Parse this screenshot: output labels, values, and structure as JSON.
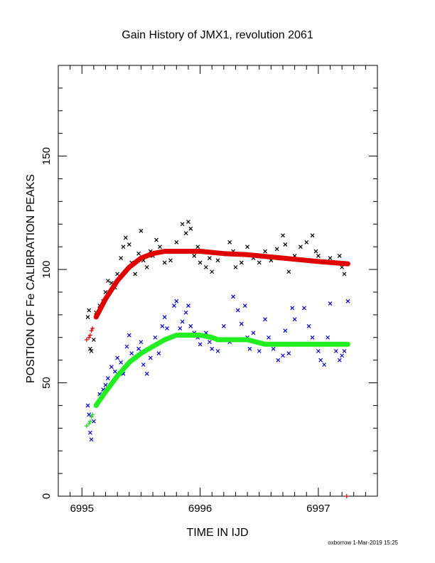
{
  "chart_data": {
    "type": "scatter",
    "title": "Gain History of JMX1, revolution 2061",
    "xlabel": "TIME IN IJD",
    "ylabel": "POSITION OF Fe CALIBRATION PEAKS",
    "xlim": [
      6994.8,
      6997.5
    ],
    "ylim": [
      0,
      190
    ],
    "x_ticks": [
      "6995",
      "6996",
      "6997"
    ],
    "y_ticks": [
      "0",
      "50",
      "100",
      "150"
    ],
    "grid": false,
    "legend": "none",
    "series": [
      {
        "marker": "x",
        "color": "#000000",
        "points": [
          [
            6995.05,
            79
          ],
          [
            6995.06,
            82
          ],
          [
            6995.07,
            65
          ],
          [
            6995.08,
            64
          ],
          [
            6995.1,
            69
          ],
          [
            6995.12,
            81
          ],
          [
            6995.15,
            84
          ],
          [
            6995.18,
            86
          ],
          [
            6995.2,
            90
          ],
          [
            6995.22,
            95
          ],
          [
            6995.25,
            94
          ],
          [
            6995.28,
            92
          ],
          [
            6995.3,
            98
          ],
          [
            6995.33,
            105
          ],
          [
            6995.35,
            110
          ],
          [
            6995.37,
            114
          ],
          [
            6995.4,
            111
          ],
          [
            6995.42,
            103
          ],
          [
            6995.45,
            98
          ],
          [
            6995.48,
            107
          ],
          [
            6995.5,
            117
          ],
          [
            6995.52,
            104
          ],
          [
            6995.55,
            101
          ],
          [
            6995.58,
            108
          ],
          [
            6995.6,
            106
          ],
          [
            6995.63,
            113
          ],
          [
            6995.66,
            110
          ],
          [
            6995.7,
            103
          ],
          [
            6995.73,
            108
          ],
          [
            6995.75,
            104
          ],
          [
            6995.8,
            112
          ],
          [
            6995.85,
            120
          ],
          [
            6995.88,
            116
          ],
          [
            6995.9,
            121
          ],
          [
            6995.92,
            118
          ],
          [
            6995.95,
            106
          ],
          [
            6995.98,
            110
          ],
          [
            6996.0,
            103
          ],
          [
            6996.02,
            108
          ],
          [
            6996.05,
            101
          ],
          [
            6996.08,
            105
          ],
          [
            6996.1,
            99
          ],
          [
            6996.15,
            104
          ],
          [
            6996.2,
            107
          ],
          [
            6996.25,
            112
          ],
          [
            6996.28,
            108
          ],
          [
            6996.3,
            101
          ],
          [
            6996.35,
            103
          ],
          [
            6996.4,
            110
          ],
          [
            6996.45,
            105
          ],
          [
            6996.5,
            103
          ],
          [
            6996.55,
            108
          ],
          [
            6996.6,
            104
          ],
          [
            6996.65,
            109
          ],
          [
            6996.7,
            115
          ],
          [
            6996.72,
            111
          ],
          [
            6996.75,
            99
          ],
          [
            6996.8,
            106
          ],
          [
            6996.85,
            110
          ],
          [
            6996.9,
            112
          ],
          [
            6996.95,
            115
          ],
          [
            6996.98,
            108
          ],
          [
            6997.0,
            106
          ],
          [
            6997.05,
            103
          ],
          [
            6997.1,
            105
          ],
          [
            6997.15,
            103
          ],
          [
            6997.18,
            106
          ],
          [
            6997.2,
            101
          ],
          [
            6997.22,
            98
          ]
        ]
      },
      {
        "marker": "x",
        "color": "#0000cc",
        "points": [
          [
            6995.05,
            40
          ],
          [
            6995.06,
            36
          ],
          [
            6995.07,
            28
          ],
          [
            6995.08,
            25
          ],
          [
            6995.1,
            33
          ],
          [
            6995.12,
            40
          ],
          [
            6995.15,
            45
          ],
          [
            6995.18,
            47
          ],
          [
            6995.2,
            49
          ],
          [
            6995.22,
            52
          ],
          [
            6995.25,
            57
          ],
          [
            6995.28,
            55
          ],
          [
            6995.3,
            61
          ],
          [
            6995.33,
            59
          ],
          [
            6995.35,
            54
          ],
          [
            6995.38,
            66
          ],
          [
            6995.4,
            71
          ],
          [
            6995.42,
            63
          ],
          [
            6995.45,
            61
          ],
          [
            6995.48,
            65
          ],
          [
            6995.5,
            68
          ],
          [
            6995.52,
            58
          ],
          [
            6995.55,
            54
          ],
          [
            6995.58,
            61
          ],
          [
            6995.6,
            66
          ],
          [
            6995.62,
            70
          ],
          [
            6995.65,
            63
          ],
          [
            6995.68,
            75
          ],
          [
            6995.7,
            79
          ],
          [
            6995.72,
            74
          ],
          [
            6995.75,
            70
          ],
          [
            6995.78,
            84
          ],
          [
            6995.8,
            86
          ],
          [
            6995.83,
            74
          ],
          [
            6995.85,
            77
          ],
          [
            6995.88,
            81
          ],
          [
            6995.9,
            84
          ],
          [
            6995.92,
            75
          ],
          [
            6995.95,
            72
          ],
          [
            6995.98,
            70
          ],
          [
            6996.0,
            67
          ],
          [
            6996.05,
            72
          ],
          [
            6996.08,
            68
          ],
          [
            6996.1,
            65
          ],
          [
            6996.15,
            64
          ],
          [
            6996.2,
            75
          ],
          [
            6996.25,
            68
          ],
          [
            6996.28,
            88
          ],
          [
            6996.32,
            82
          ],
          [
            6996.35,
            76
          ],
          [
            6996.38,
            84
          ],
          [
            6996.4,
            70
          ],
          [
            6996.42,
            65
          ],
          [
            6996.45,
            72
          ],
          [
            6996.5,
            64
          ],
          [
            6996.55,
            78
          ],
          [
            6996.58,
            70
          ],
          [
            6996.62,
            65
          ],
          [
            6996.66,
            60
          ],
          [
            6996.7,
            62
          ],
          [
            6996.72,
            73
          ],
          [
            6996.75,
            63
          ],
          [
            6996.78,
            83
          ],
          [
            6996.8,
            78
          ],
          [
            6996.85,
            67
          ],
          [
            6996.88,
            83
          ],
          [
            6996.92,
            75
          ],
          [
            6996.95,
            70
          ],
          [
            6997.0,
            64
          ],
          [
            6997.02,
            60
          ],
          [
            6997.05,
            58
          ],
          [
            6997.08,
            70
          ],
          [
            6997.1,
            85
          ],
          [
            6997.15,
            64
          ],
          [
            6997.18,
            60
          ],
          [
            6997.2,
            62
          ],
          [
            6997.22,
            64
          ],
          [
            6997.25,
            86
          ]
        ]
      },
      {
        "marker": "+",
        "color": "#e00000",
        "points": [
          [
            6995.04,
            69
          ],
          [
            6995.06,
            70
          ],
          [
            6995.07,
            71
          ],
          [
            6995.08,
            73
          ],
          [
            6995.09,
            74
          ],
          [
            6997.24,
            0
          ]
        ]
      },
      {
        "marker": "+",
        "color": "#22cc22",
        "points": [
          [
            6995.04,
            31
          ],
          [
            6995.06,
            32
          ],
          [
            6995.07,
            33
          ],
          [
            6995.08,
            35
          ],
          [
            6995.09,
            36
          ]
        ]
      },
      {
        "marker": "line",
        "color": "#e00000",
        "points": [
          [
            6995.12,
            79
          ],
          [
            6995.2,
            87
          ],
          [
            6995.3,
            95
          ],
          [
            6995.4,
            101
          ],
          [
            6995.5,
            105
          ],
          [
            6995.6,
            107
          ],
          [
            6995.7,
            108
          ],
          [
            6995.8,
            108
          ],
          [
            6995.9,
            108
          ],
          [
            6996.0,
            108
          ],
          [
            6996.2,
            107
          ],
          [
            6996.4,
            106.5
          ],
          [
            6996.6,
            105.5
          ],
          [
            6996.8,
            104.5
          ],
          [
            6997.0,
            103.5
          ],
          [
            6997.25,
            102.5
          ]
        ]
      },
      {
        "marker": "line",
        "color": "#22ee22",
        "points": [
          [
            6995.12,
            40
          ],
          [
            6995.2,
            46
          ],
          [
            6995.3,
            53
          ],
          [
            6995.4,
            59
          ],
          [
            6995.5,
            63
          ],
          [
            6995.6,
            66
          ],
          [
            6995.7,
            69
          ],
          [
            6995.8,
            71
          ],
          [
            6995.9,
            71
          ],
          [
            6996.0,
            71
          ],
          [
            6996.1,
            70
          ],
          [
            6996.15,
            69
          ],
          [
            6996.4,
            69
          ],
          [
            6996.55,
            67
          ],
          [
            6996.8,
            67
          ],
          [
            6997.0,
            67
          ],
          [
            6997.25,
            67
          ]
        ]
      }
    ]
  },
  "footer": "oxborrow  1-Mar-2019 15:25"
}
